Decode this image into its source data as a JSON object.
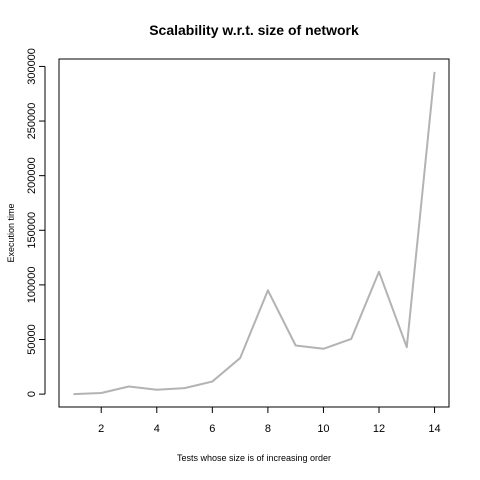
{
  "chart_data": {
    "type": "line",
    "title": "Scalability w.r.t. size of network",
    "xlabel": "Tests whose size is of increasing order",
    "ylabel": "Execution time",
    "x": [
      1,
      2,
      3,
      4,
      5,
      6,
      7,
      8,
      9,
      10,
      11,
      12,
      13,
      14
    ],
    "series": [
      {
        "values": [
          0,
          1000,
          7000,
          4000,
          5500,
          11500,
          33000,
          95000,
          44500,
          41500,
          50500,
          112000,
          43000,
          295000
        ],
        "color": "#b3b3b3"
      }
    ],
    "xlim": [
      0.48,
      14.52
    ],
    "ylim": [
      -11800,
      306800
    ],
    "xticks": [
      2,
      4,
      6,
      8,
      10,
      12,
      14
    ],
    "yticks": [
      0,
      50000,
      100000,
      150000,
      200000,
      250000,
      300000
    ],
    "grid": false,
    "legend": "none"
  }
}
